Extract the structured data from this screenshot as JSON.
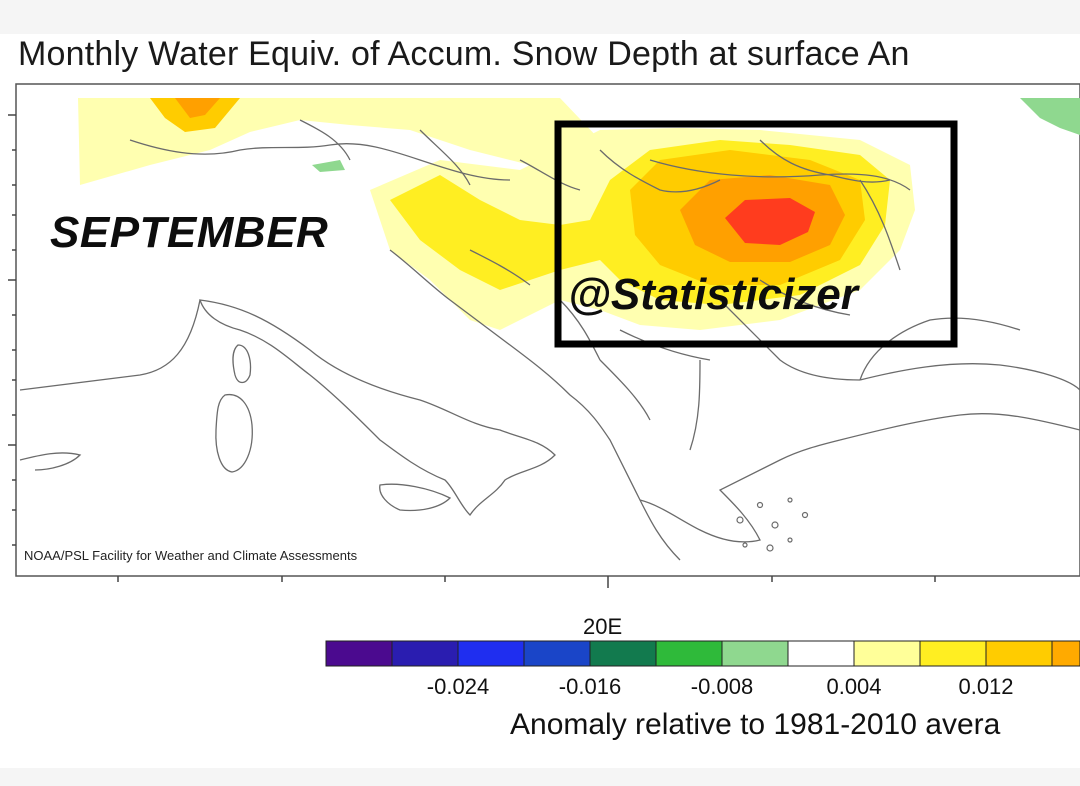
{
  "figure": {
    "title": "Monthly Water Equiv. of Accum. Snow Depth at surface An",
    "month_label": "SEPTEMBER",
    "watermark": "@Statisticizer",
    "credit": "NOAA/PSL Facility for Weather and Climate Assessments",
    "longitude_label": "20E"
  },
  "colorbar": {
    "title": "Anomaly relative to 1981-2010 avera",
    "tick_labels": [
      "-0.024",
      "-0.016",
      "-0.008",
      "0.004",
      "0.012"
    ],
    "colors": [
      "#4b0a8f",
      "#2a1db0",
      "#1f2ef0",
      "#1a45c8",
      "#127a4e",
      "#2fba3a",
      "#8fd88f",
      "#ffffff",
      "#ffff99",
      "#ffee22",
      "#ffcc00",
      "#ffaa00"
    ]
  },
  "map_colors": {
    "land_outline": "#6b6b6b",
    "light_yellow": "#ffffb0",
    "yellow": "#ffee22",
    "gold": "#ffcc00",
    "orange": "#ffa000",
    "red": "#ff3c1e",
    "green": "#8fd88f"
  }
}
